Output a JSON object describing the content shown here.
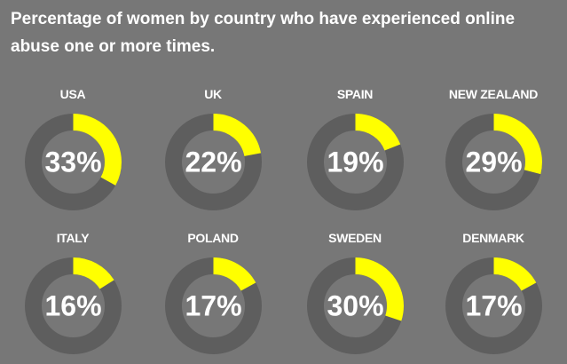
{
  "title": "Percentage of women by country who have experienced online abuse one or more times.",
  "colors": {
    "background": "#777777",
    "track": "#5e5e5e",
    "highlight": "#ffff00",
    "text": "#ffffff"
  },
  "chart_data": {
    "type": "donut",
    "title": "Percentage of women by country who have experienced online abuse one or more times.",
    "categories": [
      "USA",
      "UK",
      "SPAIN",
      "NEW ZEALAND",
      "ITALY",
      "POLAND",
      "SWEDEN",
      "DENMARK"
    ],
    "values": [
      33,
      22,
      19,
      29,
      16,
      17,
      30,
      17
    ],
    "labels": [
      "33%",
      "22%",
      "19%",
      "29%",
      "16%",
      "17%",
      "30%",
      "17%"
    ],
    "unit": "%"
  }
}
